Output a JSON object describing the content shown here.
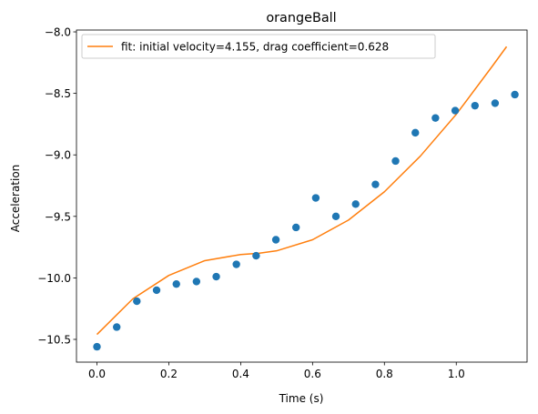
{
  "chart_data": {
    "type": "scatter",
    "title": "orangeBall",
    "xlabel": "Time (s)",
    "ylabel": "Acceleration",
    "xlim": [
      -0.057,
      1.197
    ],
    "ylim": [
      -10.685,
      -7.985
    ],
    "xticks": [
      0.0,
      0.2,
      0.4,
      0.6,
      0.8,
      1.0
    ],
    "xtick_labels": [
      "0.0",
      "0.2",
      "0.4",
      "0.6",
      "0.8",
      "1.0"
    ],
    "yticks": [
      -10.5,
      -10.0,
      -9.5,
      -9.0,
      -8.5,
      -8.0
    ],
    "ytick_labels": [
      "−10.5",
      "−10.0",
      "−9.5",
      "−9.0",
      "−8.5",
      "−8.0"
    ],
    "grid": false,
    "legend_position": "top-left",
    "series": [
      {
        "kind": "scatter",
        "color": "#1f77b4",
        "x": [
          0.0,
          0.055,
          0.111,
          0.166,
          0.221,
          0.277,
          0.332,
          0.388,
          0.443,
          0.498,
          0.554,
          0.609,
          0.665,
          0.72,
          0.775,
          0.831,
          0.886,
          0.942,
          0.997,
          1.052,
          1.108,
          1.163
        ],
        "y": [
          -10.56,
          -10.4,
          -10.19,
          -10.1,
          -10.05,
          -10.03,
          -9.99,
          -9.89,
          -9.82,
          -9.69,
          -9.59,
          -9.35,
          -9.5,
          -9.4,
          -9.24,
          -9.05,
          -8.82,
          -8.7,
          -8.64,
          -8.6,
          -8.58,
          -8.51
        ]
      },
      {
        "kind": "line",
        "name": "fit: initial velocity=4.155, drag coefficient=0.628",
        "color": "#ff7f0e",
        "x": [
          0.0,
          0.1,
          0.2,
          0.3,
          0.4,
          0.45,
          0.5,
          0.6,
          0.7,
          0.8,
          0.9,
          1.0,
          1.1,
          1.14
        ],
        "y": [
          -10.46,
          -10.17,
          -9.98,
          -9.86,
          -9.81,
          -9.8,
          -9.78,
          -9.69,
          -9.53,
          -9.3,
          -9.01,
          -8.67,
          -8.28,
          -8.12
        ]
      }
    ]
  }
}
